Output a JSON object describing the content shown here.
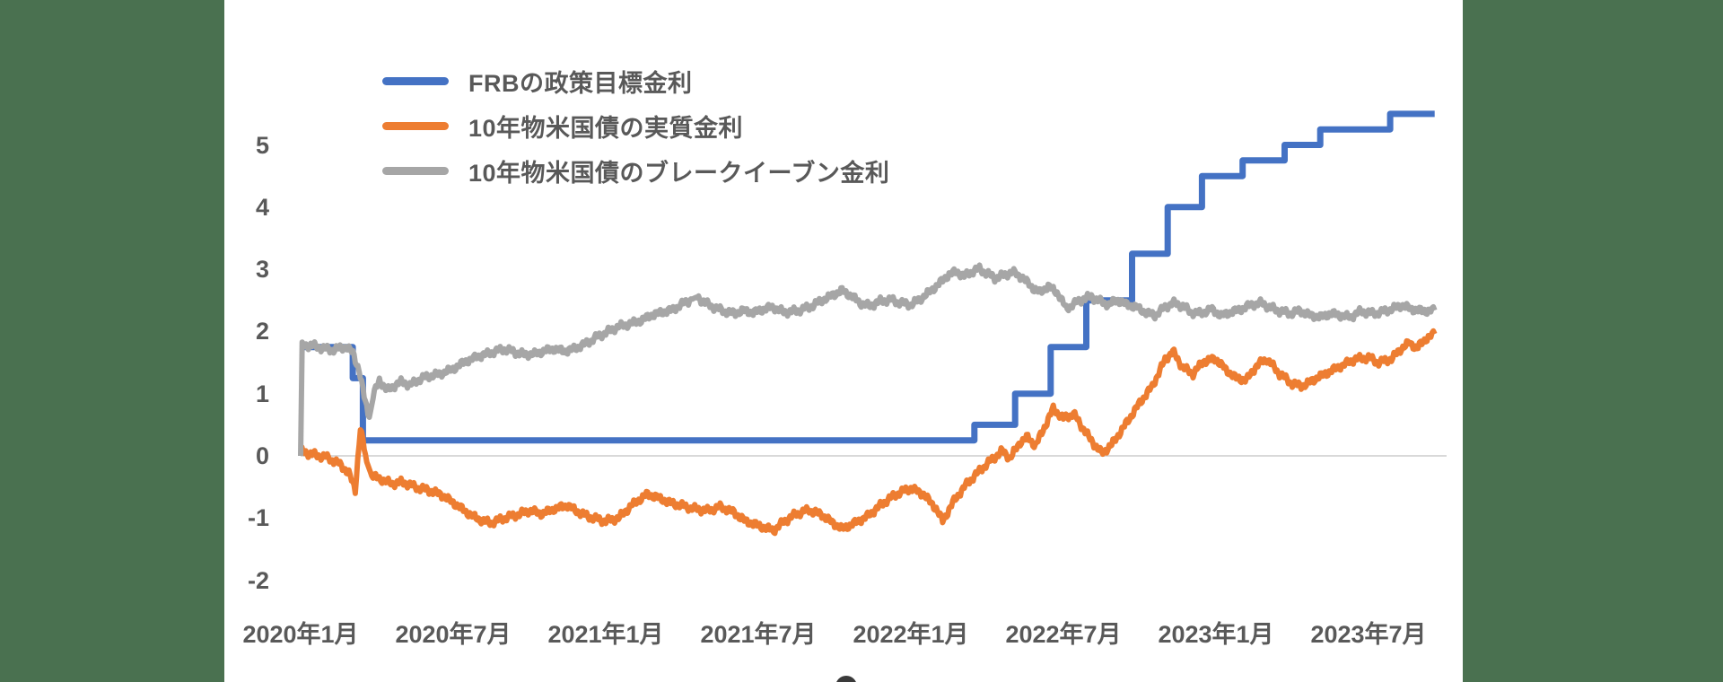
{
  "chart_data": {
    "type": "line",
    "title": "",
    "xlabel": "",
    "ylabel": "",
    "grid": "zero-line-only",
    "legend_position": "top-left-inside",
    "x_unit": "months_since_2020-01",
    "x_range_months": [
      0,
      44.6
    ],
    "ylim": [
      -2.5,
      5.8
    ],
    "y_tick_labels": [
      "5",
      "4",
      "3",
      "2",
      "1",
      "0",
      "-1",
      "-2"
    ],
    "y_tick_values": [
      5,
      4,
      3,
      2,
      1,
      0,
      -1,
      -2
    ],
    "x_tick_labels": [
      "2020年1月",
      "2020年7月",
      "2021年1月",
      "2021年7月",
      "2022年1月",
      "2022年7月",
      "2023年1月",
      "2023年7月"
    ],
    "x_tick_months": [
      0,
      6,
      12,
      18,
      24,
      30,
      36,
      42
    ],
    "zero_line_color": "#d9d9d9",
    "series": [
      {
        "name": "FRBの政策目標金利",
        "color": "#4472c4",
        "style": "step",
        "stroke_width": 7,
        "points": [
          [
            0,
            1.75
          ],
          [
            2.05,
            1.25
          ],
          [
            2.45,
            0.25
          ],
          [
            26.5,
            0.5
          ],
          [
            28.1,
            1.0
          ],
          [
            29.5,
            1.75
          ],
          [
            30.9,
            2.5
          ],
          [
            32.7,
            3.25
          ],
          [
            34.1,
            4.0
          ],
          [
            35.45,
            4.5
          ],
          [
            37.05,
            4.75
          ],
          [
            38.7,
            5.0
          ],
          [
            40.1,
            5.25
          ],
          [
            42.85,
            5.5
          ],
          [
            44.6,
            5.5
          ]
        ]
      },
      {
        "name": "10年物米国債の実質金利",
        "color": "#ed7d31",
        "style": "noisy",
        "stroke_width": 6,
        "points": [
          [
            0,
            0.08
          ],
          [
            0.5,
            0.02
          ],
          [
            1,
            -0.02
          ],
          [
            1.5,
            -0.12
          ],
          [
            1.9,
            -0.28
          ],
          [
            2.15,
            -0.55
          ],
          [
            2.35,
            0.45
          ],
          [
            2.6,
            -0.1
          ],
          [
            2.8,
            -0.32
          ],
          [
            3.2,
            -0.38
          ],
          [
            3.6,
            -0.45
          ],
          [
            4,
            -0.42
          ],
          [
            4.5,
            -0.5
          ],
          [
            5,
            -0.55
          ],
          [
            5.5,
            -0.62
          ],
          [
            6,
            -0.75
          ],
          [
            6.5,
            -0.9
          ],
          [
            7,
            -1.02
          ],
          [
            7.5,
            -1.08
          ],
          [
            8,
            -1.0
          ],
          [
            8.5,
            -0.95
          ],
          [
            9,
            -0.88
          ],
          [
            9.5,
            -0.93
          ],
          [
            10,
            -0.85
          ],
          [
            10.5,
            -0.8
          ],
          [
            11,
            -0.92
          ],
          [
            11.5,
            -1.0
          ],
          [
            12,
            -1.05
          ],
          [
            12.5,
            -1.0
          ],
          [
            13,
            -0.8
          ],
          [
            13.6,
            -0.62
          ],
          [
            14,
            -0.66
          ],
          [
            14.5,
            -0.75
          ],
          [
            15,
            -0.8
          ],
          [
            15.5,
            -0.85
          ],
          [
            16,
            -0.88
          ],
          [
            16.5,
            -0.82
          ],
          [
            17,
            -0.9
          ],
          [
            17.5,
            -1.05
          ],
          [
            18,
            -1.12
          ],
          [
            18.6,
            -1.2
          ],
          [
            19,
            -1.06
          ],
          [
            19.5,
            -0.93
          ],
          [
            20,
            -0.87
          ],
          [
            20.5,
            -0.95
          ],
          [
            21,
            -1.1
          ],
          [
            21.3,
            -1.17
          ],
          [
            21.8,
            -1.08
          ],
          [
            22.3,
            -0.97
          ],
          [
            23,
            -0.73
          ],
          [
            23.5,
            -0.6
          ],
          [
            24,
            -0.52
          ],
          [
            24.5,
            -0.62
          ],
          [
            25,
            -0.85
          ],
          [
            25.25,
            -1.05
          ],
          [
            25.7,
            -0.72
          ],
          [
            26.2,
            -0.45
          ],
          [
            26.8,
            -0.2
          ],
          [
            27.3,
            -0.02
          ],
          [
            27.6,
            0.08
          ],
          [
            27.9,
            -0.04
          ],
          [
            28.3,
            0.22
          ],
          [
            28.6,
            0.3
          ],
          [
            28.9,
            0.16
          ],
          [
            29.3,
            0.5
          ],
          [
            29.6,
            0.76
          ],
          [
            30,
            0.6
          ],
          [
            30.4,
            0.68
          ],
          [
            31,
            0.3
          ],
          [
            31.5,
            0.04
          ],
          [
            31.9,
            0.18
          ],
          [
            32.4,
            0.48
          ],
          [
            33,
            0.85
          ],
          [
            33.5,
            1.12
          ],
          [
            34,
            1.55
          ],
          [
            34.3,
            1.68
          ],
          [
            34.7,
            1.42
          ],
          [
            35.1,
            1.32
          ],
          [
            35.5,
            1.52
          ],
          [
            36,
            1.56
          ],
          [
            36.4,
            1.38
          ],
          [
            36.8,
            1.25
          ],
          [
            37.2,
            1.22
          ],
          [
            37.6,
            1.45
          ],
          [
            38,
            1.56
          ],
          [
            38.5,
            1.32
          ],
          [
            39,
            1.16
          ],
          [
            39.4,
            1.12
          ],
          [
            40,
            1.26
          ],
          [
            40.5,
            1.36
          ],
          [
            41,
            1.46
          ],
          [
            41.5,
            1.56
          ],
          [
            42,
            1.58
          ],
          [
            42.4,
            1.5
          ],
          [
            42.9,
            1.56
          ],
          [
            43.3,
            1.73
          ],
          [
            43.6,
            1.82
          ],
          [
            43.9,
            1.73
          ],
          [
            44.3,
            1.9
          ],
          [
            44.6,
            1.96
          ]
        ]
      },
      {
        "name": "10年物米国債のブレークイーブン金利",
        "color": "#a6a6a6",
        "style": "noisy",
        "stroke_width": 6,
        "points": [
          [
            0,
            0
          ],
          [
            0.06,
            1.77
          ],
          [
            0.4,
            1.78
          ],
          [
            0.8,
            1.74
          ],
          [
            1.2,
            1.7
          ],
          [
            1.5,
            1.73
          ],
          [
            1.8,
            1.75
          ],
          [
            2.05,
            1.66
          ],
          [
            2.3,
            1.38
          ],
          [
            2.5,
            0.95
          ],
          [
            2.7,
            0.62
          ],
          [
            2.9,
            1.02
          ],
          [
            3.1,
            1.22
          ],
          [
            3.4,
            1.05
          ],
          [
            3.7,
            1.13
          ],
          [
            4,
            1.2
          ],
          [
            4.3,
            1.13
          ],
          [
            4.6,
            1.22
          ],
          [
            5,
            1.28
          ],
          [
            5.5,
            1.32
          ],
          [
            6,
            1.4
          ],
          [
            6.5,
            1.52
          ],
          [
            7,
            1.6
          ],
          [
            7.5,
            1.66
          ],
          [
            8,
            1.72
          ],
          [
            8.4,
            1.67
          ],
          [
            8.8,
            1.63
          ],
          [
            9.2,
            1.64
          ],
          [
            9.6,
            1.69
          ],
          [
            10,
            1.72
          ],
          [
            10.4,
            1.68
          ],
          [
            10.8,
            1.73
          ],
          [
            11.2,
            1.8
          ],
          [
            11.6,
            1.9
          ],
          [
            12,
            1.98
          ],
          [
            12.5,
            2.08
          ],
          [
            13,
            2.13
          ],
          [
            13.4,
            2.18
          ],
          [
            13.8,
            2.26
          ],
          [
            14.2,
            2.31
          ],
          [
            14.6,
            2.34
          ],
          [
            15,
            2.44
          ],
          [
            15.4,
            2.52
          ],
          [
            15.6,
            2.56
          ],
          [
            15.9,
            2.46
          ],
          [
            16.3,
            2.38
          ],
          [
            16.7,
            2.32
          ],
          [
            17.1,
            2.29
          ],
          [
            17.4,
            2.34
          ],
          [
            17.8,
            2.3
          ],
          [
            18.2,
            2.36
          ],
          [
            18.6,
            2.39
          ],
          [
            19,
            2.31
          ],
          [
            19.5,
            2.33
          ],
          [
            20,
            2.39
          ],
          [
            20.5,
            2.5
          ],
          [
            21,
            2.6
          ],
          [
            21.3,
            2.66
          ],
          [
            21.7,
            2.56
          ],
          [
            22,
            2.46
          ],
          [
            22.4,
            2.41
          ],
          [
            22.8,
            2.49
          ],
          [
            23.2,
            2.51
          ],
          [
            23.6,
            2.46
          ],
          [
            24,
            2.43
          ],
          [
            24.4,
            2.53
          ],
          [
            24.8,
            2.66
          ],
          [
            25.2,
            2.8
          ],
          [
            25.5,
            2.92
          ],
          [
            25.8,
            2.96
          ],
          [
            26.1,
            2.89
          ],
          [
            26.4,
            2.96
          ],
          [
            26.7,
            3.01
          ],
          [
            27,
            2.93
          ],
          [
            27.3,
            2.86
          ],
          [
            27.7,
            2.91
          ],
          [
            28,
            2.96
          ],
          [
            28.4,
            2.86
          ],
          [
            28.8,
            2.7
          ],
          [
            29.1,
            2.63
          ],
          [
            29.4,
            2.73
          ],
          [
            29.8,
            2.61
          ],
          [
            30.1,
            2.37
          ],
          [
            30.4,
            2.44
          ],
          [
            30.8,
            2.53
          ],
          [
            31.1,
            2.56
          ],
          [
            31.4,
            2.49
          ],
          [
            31.8,
            2.43
          ],
          [
            32.1,
            2.51
          ],
          [
            32.5,
            2.43
          ],
          [
            32.9,
            2.39
          ],
          [
            33.2,
            2.31
          ],
          [
            33.6,
            2.26
          ],
          [
            34,
            2.39
          ],
          [
            34.3,
            2.46
          ],
          [
            34.7,
            2.41
          ],
          [
            35,
            2.31
          ],
          [
            35.4,
            2.29
          ],
          [
            35.8,
            2.36
          ],
          [
            36.2,
            2.26
          ],
          [
            36.6,
            2.31
          ],
          [
            37,
            2.36
          ],
          [
            37.4,
            2.43
          ],
          [
            37.8,
            2.46
          ],
          [
            38.1,
            2.39
          ],
          [
            38.5,
            2.33
          ],
          [
            38.9,
            2.29
          ],
          [
            39.3,
            2.33
          ],
          [
            39.7,
            2.26
          ],
          [
            40.1,
            2.23
          ],
          [
            40.5,
            2.29
          ],
          [
            40.9,
            2.26
          ],
          [
            41.3,
            2.23
          ],
          [
            41.7,
            2.33
          ],
          [
            42.1,
            2.29
          ],
          [
            42.5,
            2.31
          ],
          [
            42.9,
            2.36
          ],
          [
            43.3,
            2.42
          ],
          [
            43.7,
            2.36
          ],
          [
            44.1,
            2.33
          ],
          [
            44.6,
            2.34
          ]
        ]
      }
    ]
  },
  "page": {
    "background_color": "#4a7150",
    "card_color": "#ffffff"
  }
}
